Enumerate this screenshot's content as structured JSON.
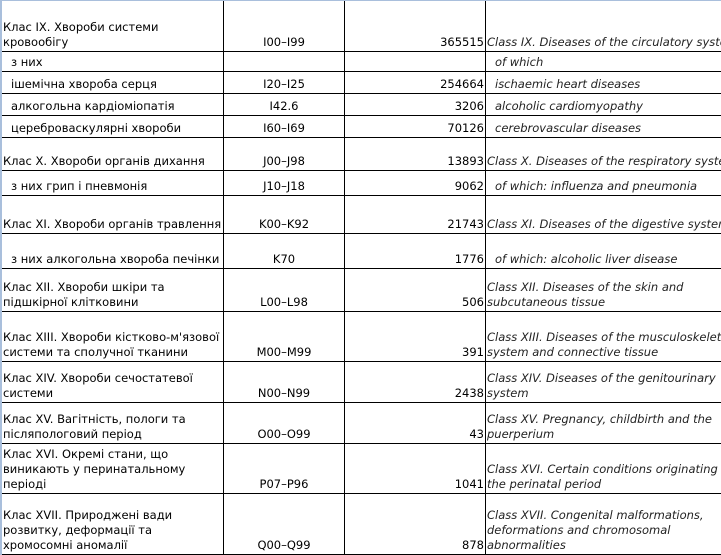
{
  "rows": [
    {
      "ua": "Клас IX. Хвороби системи кровообігу",
      "code": "I00–I99",
      "value": "365515",
      "en": "Class IX. Diseases of the circulatory system",
      "indent": false,
      "h": 50
    },
    {
      "ua": "з них",
      "code": "",
      "value": "",
      "en": "of which",
      "indent": true,
      "h": 20
    },
    {
      "ua": "ішемічна хвороба серця",
      "code": "I20–I25",
      "value": "254664",
      "en": "ischaemic heart diseases",
      "indent": true,
      "h": 22
    },
    {
      "ua": "алкогольна кардіоміопатія",
      "code": "I42.6",
      "value": "3206",
      "en": "alcoholic cardiomyopathy",
      "indent": true,
      "h": 22
    },
    {
      "ua": "цереброваскулярні хвороби",
      "code": "I60–I69",
      "value": "70126",
      "en": "cerebrovascular diseases",
      "indent": true,
      "h": 22
    },
    {
      "ua": "Клас X. Хвороби органів дихання",
      "code": "J00–J98",
      "value": "13893",
      "en": "Class X. Diseases of the respiratory system",
      "indent": false,
      "h": 33
    },
    {
      "ua": "з них грип і пневмонія",
      "code": "J10–J18",
      "value": "9062",
      "en": "of which: influenza and pneumonia",
      "indent": true,
      "h": 25
    },
    {
      "ua": "Клас XI. Хвороби органів травлення",
      "code": "K00–K92",
      "value": "21743",
      "en": "Class XI. Diseases of the digestive system",
      "indent": false,
      "h": 38
    },
    {
      "ua": "з них алкогольна хвороба печінки",
      "code": "K70",
      "value": "1776",
      "en": "of which: alcoholic liver disease",
      "indent": true,
      "h": 35
    },
    {
      "ua": "Клас XII. Хвороби шкіри та підшкірної клітковини",
      "code": "L00–L98",
      "value": "506",
      "en": "Class XII. Diseases of the skin and subcutaneous tissue",
      "indent": false,
      "h": 43
    },
    {
      "ua": "Клас XIII. Хвороби кістково-м'язової системи та сполучної тканини",
      "code": "M00–M99",
      "value": "391",
      "en": "Class XIII. Diseases of the musculoskeletal system and connective tissue",
      "indent": false,
      "h": 50
    },
    {
      "ua": "Клас XIV. Хвороби сечостатевої системи",
      "code": "N00–N99",
      "value": "2438",
      "en": "Class XIV. Diseases of the genitourinary system",
      "indent": false,
      "h": 41
    },
    {
      "ua": "Клас XV. Вагітність, пологи та післяпологовий період",
      "code": "O00–O99",
      "value": "43",
      "en": "Class XV. Pregnancy, childbirth and the puerperium",
      "indent": false,
      "h": 41
    },
    {
      "ua": "Клас XVI. Окремі стани, що виникають у перинатальному періоді",
      "code": "P07–P96",
      "value": "1041",
      "en": "Class XVI. Certain conditions originating in the perinatal period",
      "indent": false,
      "h": 50
    },
    {
      "ua": "Клас XVII. Природжені вади розвитку, деформації та хромосомні аномалії",
      "code": "Q00–Q99",
      "value": "878",
      "en": "Class XVII. Congenital malformations, deformations and chromosomal abnormalities",
      "indent": false,
      "h": 61
    }
  ]
}
